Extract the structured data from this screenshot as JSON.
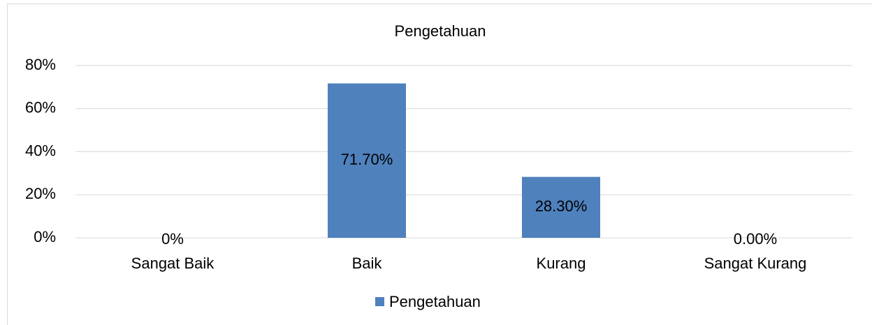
{
  "chart_data": {
    "type": "bar",
    "title": "Pengetahuan",
    "categories": [
      "Sangat Baik",
      "Baik",
      "Kurang",
      "Sangat Kurang"
    ],
    "series": [
      {
        "name": "Pengetahuan",
        "color": "#4f81bd",
        "values": [
          0,
          71.7,
          28.3,
          0
        ],
        "value_labels": [
          "0%",
          "71.70%",
          "28.30%",
          "0.00%"
        ]
      }
    ],
    "ylim": [
      0,
      80
    ],
    "yticks": [
      {
        "value": 0,
        "label": "0%"
      },
      {
        "value": 20,
        "label": "20%"
      },
      {
        "value": 40,
        "label": "40%"
      },
      {
        "value": 60,
        "label": "60%"
      },
      {
        "value": 80,
        "label": "80%"
      }
    ],
    "grid": true,
    "legend": "bottom"
  }
}
